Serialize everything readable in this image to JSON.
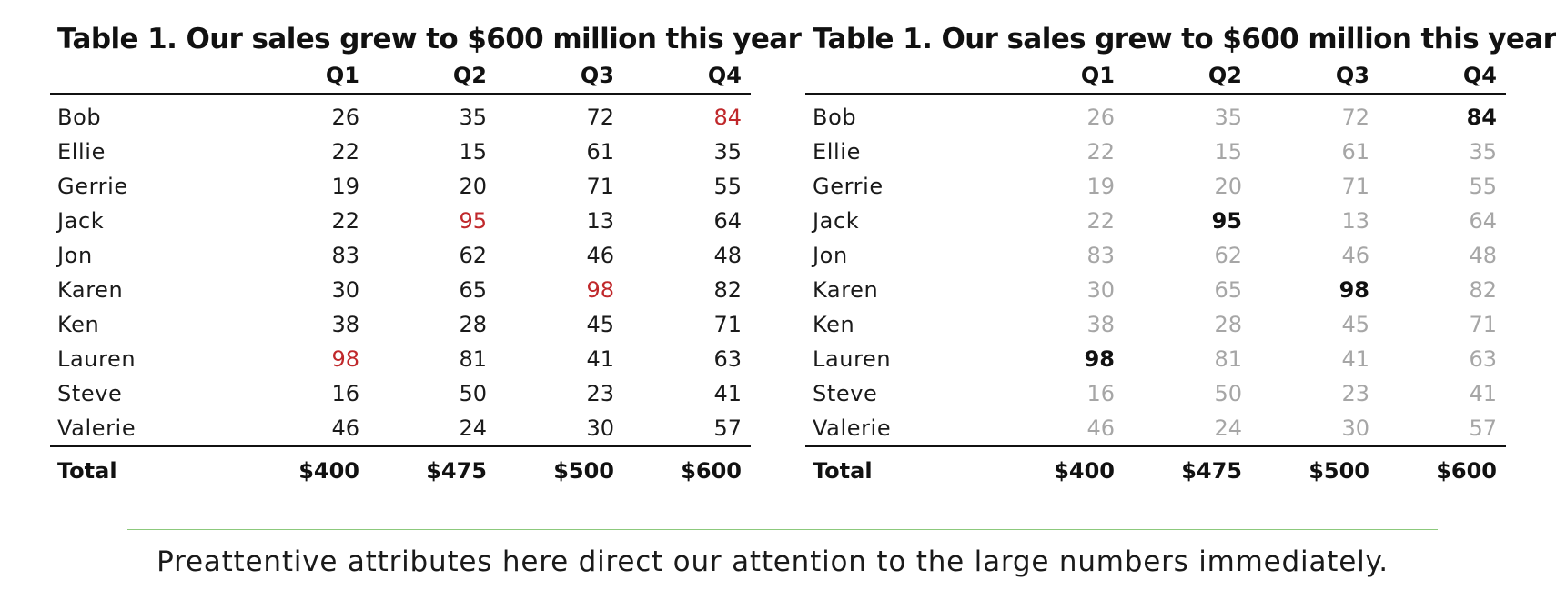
{
  "chart_data": [
    {
      "type": "table",
      "title": "Table 1. Our sales grew to $600 million this year",
      "columns": [
        "Q1",
        "Q2",
        "Q3",
        "Q4"
      ],
      "rows": [
        {
          "name": "Bob",
          "values": [
            26,
            35,
            72,
            84
          ]
        },
        {
          "name": "Ellie",
          "values": [
            22,
            15,
            61,
            35
          ]
        },
        {
          "name": "Gerrie",
          "values": [
            19,
            20,
            71,
            55
          ]
        },
        {
          "name": "Jack",
          "values": [
            22,
            95,
            13,
            64
          ]
        },
        {
          "name": "Jon",
          "values": [
            83,
            62,
            46,
            48
          ]
        },
        {
          "name": "Karen",
          "values": [
            30,
            65,
            98,
            82
          ]
        },
        {
          "name": "Ken",
          "values": [
            38,
            28,
            45,
            71
          ]
        },
        {
          "name": "Lauren",
          "values": [
            98,
            81,
            41,
            63
          ]
        },
        {
          "name": "Steve",
          "values": [
            16,
            50,
            23,
            41
          ]
        },
        {
          "name": "Valerie",
          "values": [
            46,
            24,
            30,
            57
          ]
        }
      ],
      "total_label": "Total",
      "totals": [
        "$400",
        "$475",
        "$500",
        "$600"
      ],
      "highlight_style": "red",
      "highlight_color": "#c0282b",
      "normal_color": "#1a1a1a",
      "highlights": [
        [
          0,
          3
        ],
        [
          3,
          1
        ],
        [
          5,
          2
        ],
        [
          7,
          0
        ]
      ]
    },
    {
      "type": "table",
      "title": "Table 1. Our sales grew to $600 million this year",
      "columns": [
        "Q1",
        "Q2",
        "Q3",
        "Q4"
      ],
      "rows": [
        {
          "name": "Bob",
          "values": [
            26,
            35,
            72,
            84
          ]
        },
        {
          "name": "Ellie",
          "values": [
            22,
            15,
            61,
            35
          ]
        },
        {
          "name": "Gerrie",
          "values": [
            19,
            20,
            71,
            55
          ]
        },
        {
          "name": "Jack",
          "values": [
            22,
            95,
            13,
            64
          ]
        },
        {
          "name": "Jon",
          "values": [
            83,
            62,
            46,
            48
          ]
        },
        {
          "name": "Karen",
          "values": [
            30,
            65,
            98,
            82
          ]
        },
        {
          "name": "Ken",
          "values": [
            38,
            28,
            45,
            71
          ]
        },
        {
          "name": "Lauren",
          "values": [
            98,
            81,
            41,
            63
          ]
        },
        {
          "name": "Steve",
          "values": [
            16,
            50,
            23,
            41
          ]
        },
        {
          "name": "Valerie",
          "values": [
            46,
            24,
            30,
            57
          ]
        }
      ],
      "total_label": "Total",
      "totals": [
        "$400",
        "$475",
        "$500",
        "$600"
      ],
      "highlight_style": "bold",
      "highlight_color": "#111111",
      "normal_color": "#a6a6a6",
      "highlights": [
        [
          0,
          3
        ],
        [
          3,
          1
        ],
        [
          5,
          2
        ],
        [
          7,
          0
        ]
      ]
    }
  ],
  "caption": "Preattentive attributes here direct our attention to the large numbers immediately.",
  "divider_color": "#8cc97c"
}
